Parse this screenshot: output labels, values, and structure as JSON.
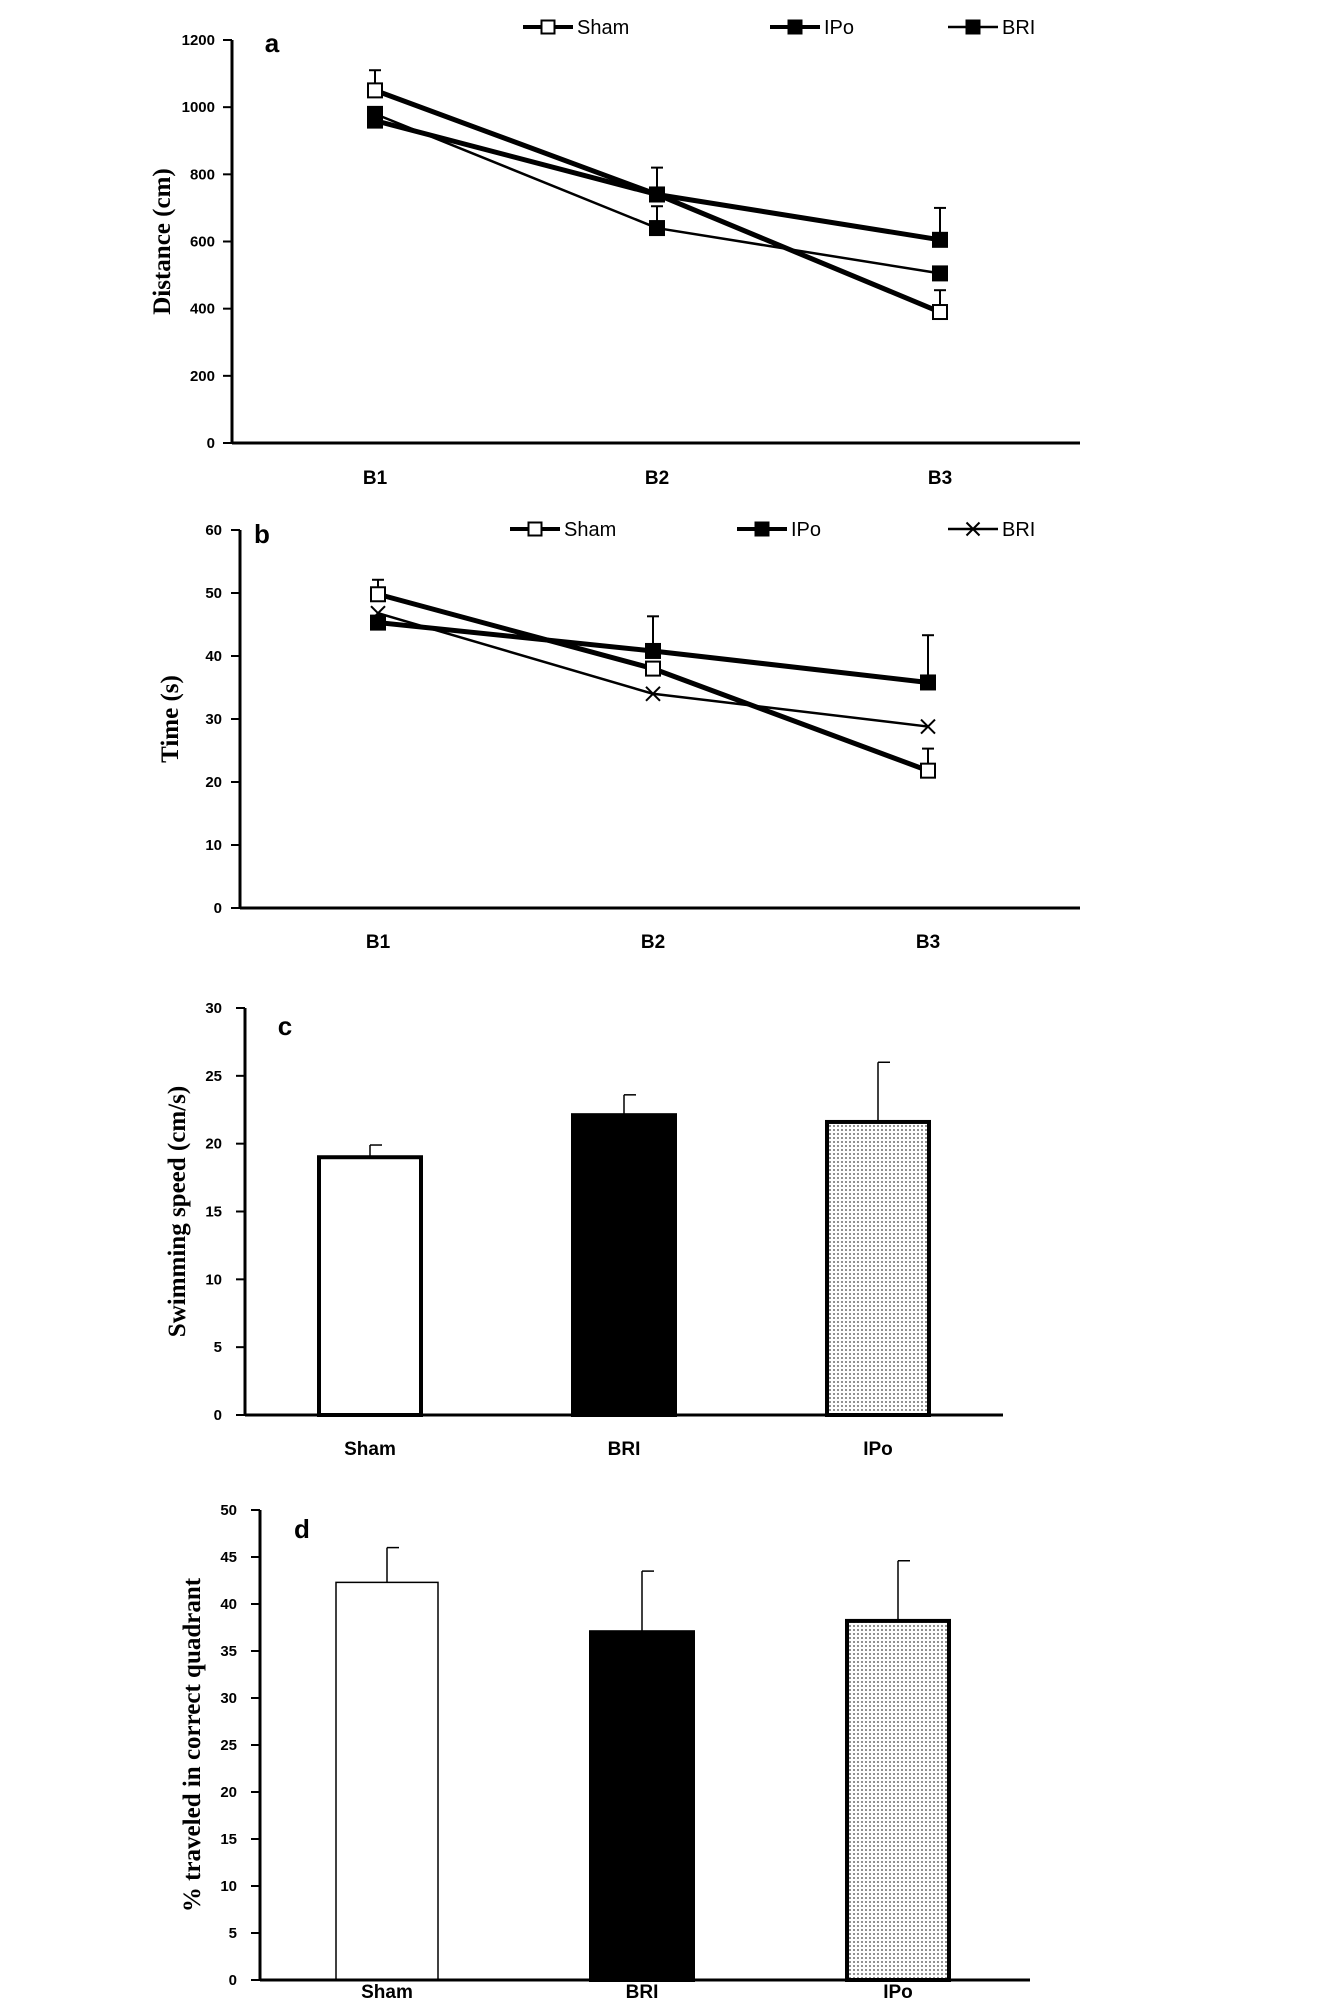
{
  "chart_data": [
    {
      "type": "line",
      "panel": "a",
      "categories": [
        "B1",
        "B2",
        "B3"
      ],
      "ylabel": "Distance (cm)",
      "ylim": [
        0,
        1200
      ],
      "yticks": [
        "0",
        "200",
        "400",
        "600",
        "800",
        "1000",
        "1200"
      ],
      "error_bars": "upper only",
      "series": [
        {
          "name": "Sham",
          "marker": "open-square",
          "line": "thick",
          "values": [
            1050,
            740,
            390
          ],
          "errors": [
            60,
            80,
            65
          ]
        },
        {
          "name": "IPo",
          "marker": "filled-square",
          "line": "thick",
          "values": [
            960,
            740,
            605
          ],
          "errors": [
            0,
            20,
            95
          ]
        },
        {
          "name": "BRI",
          "marker": "filled-square",
          "line": "thin",
          "values": [
            980,
            640,
            505
          ],
          "errors": [
            0,
            65,
            0
          ]
        }
      ]
    },
    {
      "type": "line",
      "panel": "b",
      "categories": [
        "B1",
        "B2",
        "B3"
      ],
      "ylabel": "Time (s)",
      "ylim": [
        0,
        60
      ],
      "yticks": [
        "0",
        "10",
        "20",
        "30",
        "40",
        "50",
        "60"
      ],
      "error_bars": "upper only",
      "series": [
        {
          "name": "Sham",
          "marker": "open-square",
          "line": "thick",
          "values": [
            49.8,
            38,
            21.8
          ],
          "errors": [
            2.3,
            0,
            3.5
          ]
        },
        {
          "name": "IPo",
          "marker": "filled-square",
          "line": "thick",
          "values": [
            45.3,
            40.8,
            35.8
          ],
          "errors": [
            0,
            5.5,
            7.5
          ]
        },
        {
          "name": "BRI",
          "marker": "cross",
          "line": "thin",
          "values": [
            46.8,
            34,
            28.8
          ],
          "errors": [
            0,
            0,
            0
          ]
        }
      ]
    },
    {
      "type": "bar",
      "panel": "c",
      "categories": [
        "Sham",
        "BRI",
        "IPo"
      ],
      "values": [
        19,
        22.1,
        21.6
      ],
      "errors": [
        0.9,
        1.5,
        4.4
      ],
      "fills": [
        "white",
        "black",
        "dotted"
      ],
      "ylabel": "Swimming speed (cm/s)",
      "ylim": [
        0,
        30
      ],
      "yticks": [
        "0",
        "5",
        "10",
        "15",
        "20",
        "25",
        "30"
      ]
    },
    {
      "type": "bar",
      "panel": "d",
      "categories": [
        "Sham",
        "BRI",
        "IPo"
      ],
      "values": [
        42.3,
        37,
        38.2
      ],
      "errors": [
        3.7,
        6.5,
        6.4
      ],
      "fills": [
        "white",
        "black",
        "dotted"
      ],
      "ylabel": "% traveled in correct quadrant",
      "ylim": [
        0,
        50
      ],
      "yticks": [
        "0",
        "5",
        "10",
        "15",
        "20",
        "25",
        "30",
        "35",
        "40",
        "45",
        "50"
      ]
    }
  ],
  "colors": {
    "ink": "#000000",
    "paper": "#ffffff"
  }
}
